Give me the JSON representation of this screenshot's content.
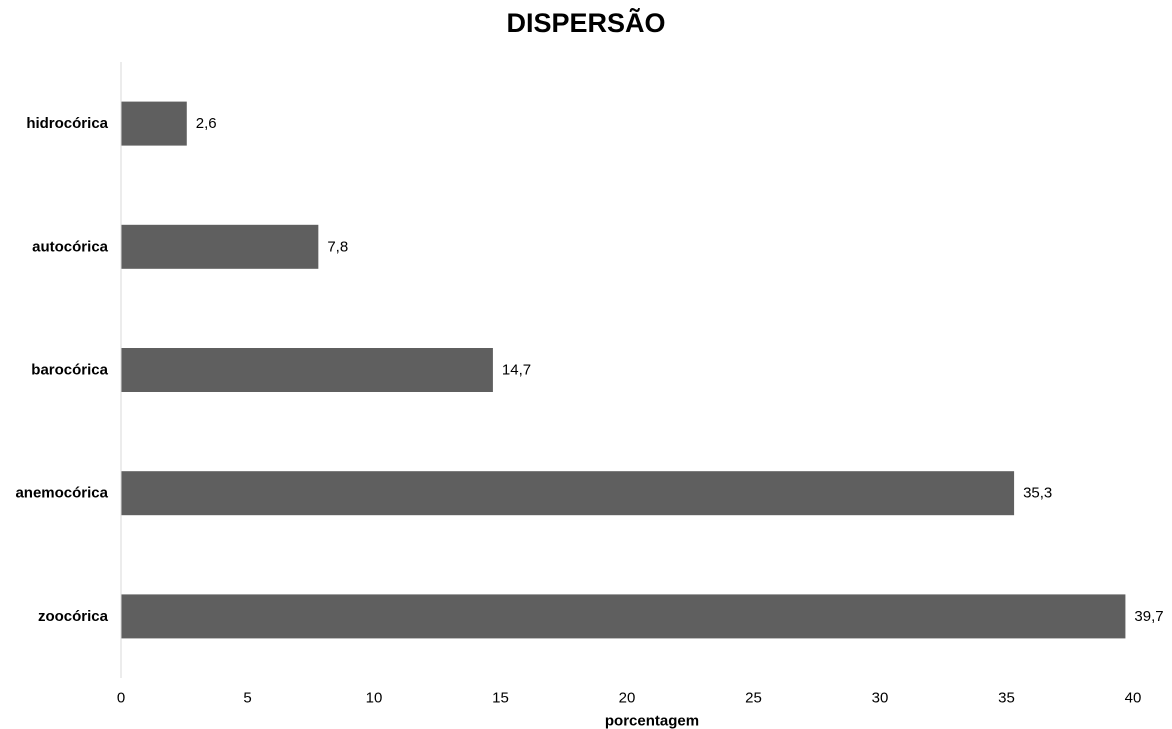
{
  "chart_data": {
    "type": "bar",
    "orientation": "horizontal",
    "title": "DISPERSÃO",
    "xlabel": "porcentagem",
    "ylabel": "",
    "categories": [
      "hidrocórica",
      "autocórica",
      "barocórica",
      "anemocórica",
      "zoocórica"
    ],
    "values": [
      2.6,
      7.8,
      14.7,
      35.3,
      39.7
    ],
    "value_labels": [
      "2,6",
      "7,8",
      "14,7",
      "35,3",
      "39,7"
    ],
    "xlim": [
      0,
      40
    ],
    "ticks": [
      0,
      5,
      10,
      15,
      20,
      25,
      30,
      35,
      40
    ],
    "tick_labels": [
      "0",
      "5",
      "10",
      "15",
      "20",
      "25",
      "30",
      "35",
      "40"
    ],
    "grid": false,
    "bar_color": "#5f5f5f",
    "axis_color": "#d9d9d9"
  }
}
